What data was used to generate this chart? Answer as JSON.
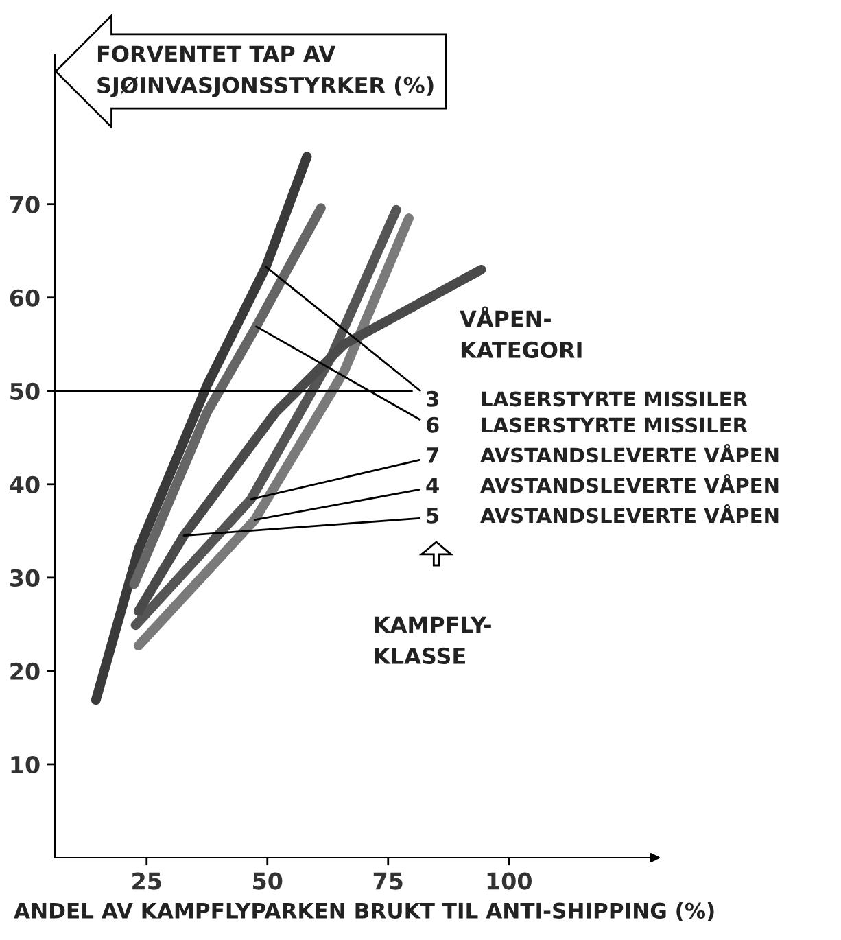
{
  "chart_data": {
    "type": "line",
    "ylabel": "FORVENTET TAP AV\nSJØINVASJONSSTYRKER (%)",
    "xlabel": "ANDEL AV KAMPFLYPARKEN BRUKT TIL ANTI-SHIPPING (%)",
    "xlim": [
      6,
      131
    ],
    "ylim": [
      0,
      86
    ],
    "xticks": [
      25,
      50,
      75,
      100
    ],
    "yticks": [
      10,
      20,
      30,
      40,
      50,
      60,
      70
    ],
    "grid": false,
    "marker": "none",
    "line_style": "solid",
    "series": [
      {
        "color": "#3a3a3a",
        "x": [
          14.5,
          23.3,
          37.5,
          49.7,
          58.2
        ],
        "values": [
          16.9,
          33.0,
          50.6,
          63.3,
          75.1
        ]
      },
      {
        "color": "#666666",
        "x": [
          22.4,
          37.5,
          47.7,
          61.1
        ],
        "values": [
          29.3,
          47.7,
          56.9,
          69.6
        ]
      },
      {
        "color": "#555555",
        "x": [
          22.7,
          46.6,
          63.1,
          76.7
        ],
        "values": [
          24.9,
          38.4,
          53.5,
          69.4
        ]
      },
      {
        "color": "#7a7a7a",
        "x": [
          23.3,
          47.4,
          65.9,
          79.3
        ],
        "values": [
          22.7,
          36.2,
          52.1,
          68.5
        ]
      },
      {
        "color": "#4a4a4a",
        "x": [
          23.3,
          32.7,
          51.7,
          65.9,
          94.3
        ],
        "values": [
          26.4,
          34.5,
          47.7,
          55.0,
          63.0
        ]
      }
    ],
    "ref_lines": [
      {
        "axis": "y",
        "value": 50,
        "color": "#000000",
        "line_style": "solid"
      }
    ],
    "annotations": [
      {
        "text": "3",
        "x": 49.7,
        "y": 63.3
      },
      {
        "text": "6",
        "x": 47.7,
        "y": 56.9
      },
      {
        "text": "7",
        "x": 46.6,
        "y": 38.4
      },
      {
        "text": "4",
        "x": 47.4,
        "y": 36.2
      },
      {
        "text": "5",
        "x": 32.7,
        "y": 34.5
      },
      "VÅPEN-\nKATEGORI",
      "LASERSTYRTE MISSILER",
      "LASERSTYRTE MISSILER",
      "AVSTANDSLEVERTE VÅPEN",
      "AVSTANDSLEVERTE VÅPEN",
      "AVSTANDSLEVERTE VÅPEN",
      "KAMPFLY-\nKLASSE"
    ]
  }
}
